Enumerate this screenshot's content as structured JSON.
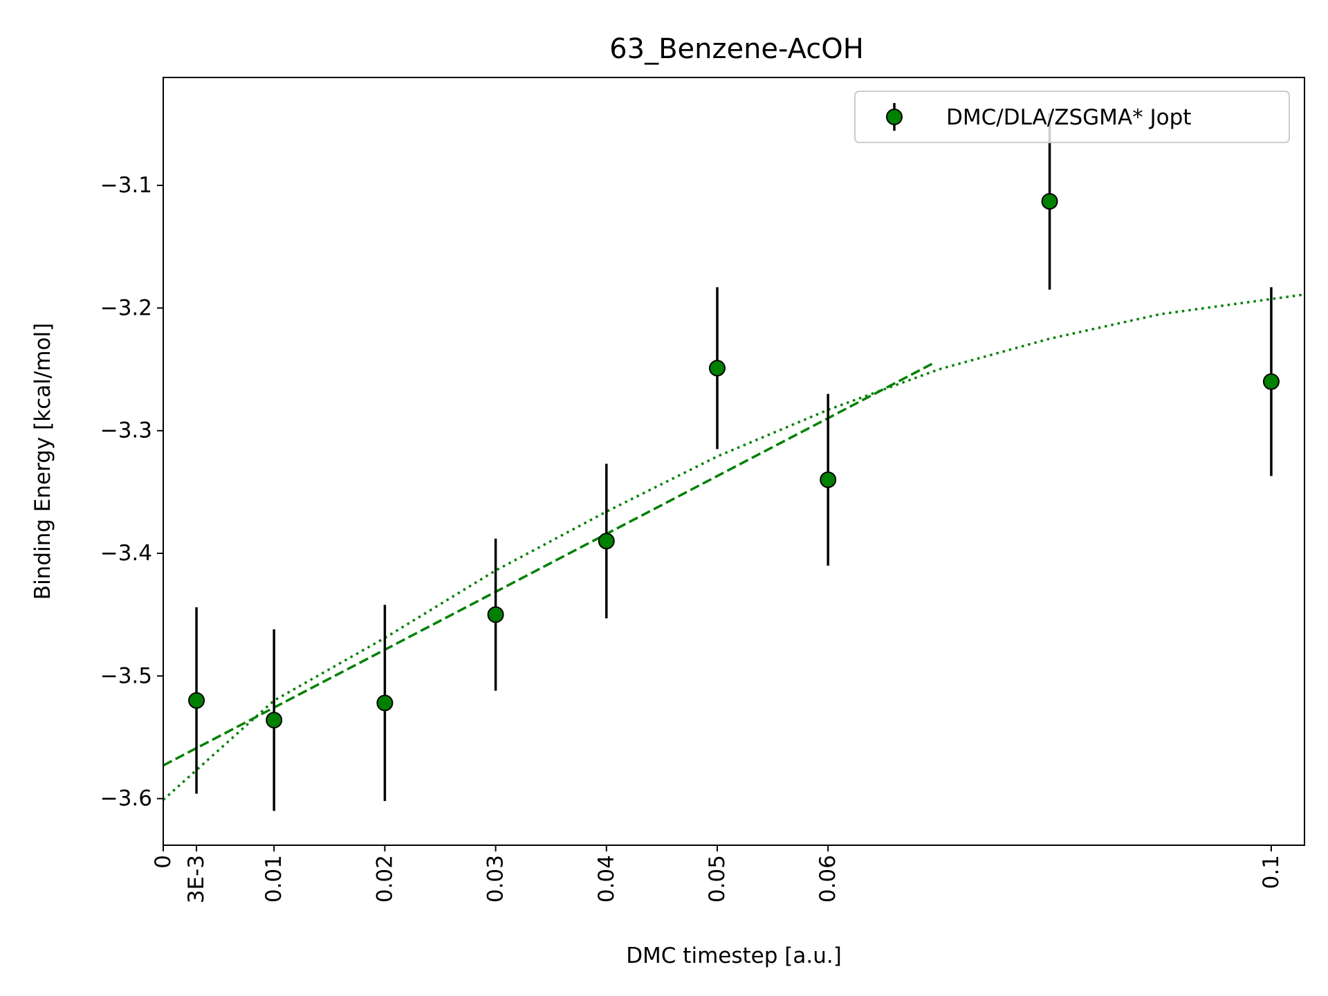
{
  "chart_data": {
    "type": "scatter",
    "title": "63_Benzene-AcOH",
    "xlabel": "DMC timestep [a.u.]",
    "ylabel": "Binding Energy [kcal/mol]",
    "xlim": [
      0,
      0.103
    ],
    "ylim": [
      -3.638,
      -3.012
    ],
    "x_ticks": [
      {
        "value": 0,
        "label": "0"
      },
      {
        "value": 0.003,
        "label": "3E-3"
      },
      {
        "value": 0.01,
        "label": "0.01"
      },
      {
        "value": 0.02,
        "label": "0.02"
      },
      {
        "value": 0.03,
        "label": "0.03"
      },
      {
        "value": 0.04,
        "label": "0.04"
      },
      {
        "value": 0.05,
        "label": "0.05"
      },
      {
        "value": 0.06,
        "label": "0.06"
      },
      {
        "value": 0.1,
        "label": "0.1"
      }
    ],
    "y_ticks": [
      {
        "value": -3.6,
        "label": "−3.6"
      },
      {
        "value": -3.5,
        "label": "−3.5"
      },
      {
        "value": -3.4,
        "label": "−3.4"
      },
      {
        "value": -3.3,
        "label": "−3.3"
      },
      {
        "value": -3.2,
        "label": "−3.2"
      },
      {
        "value": -3.1,
        "label": "−3.1"
      }
    ],
    "series": [
      {
        "name": "DMC/DLA/ZSGMA* Jopt",
        "color": "#008000",
        "points": [
          {
            "x": 0.003,
            "y": -3.52,
            "err": 0.076
          },
          {
            "x": 0.01,
            "y": -3.536,
            "err": 0.074
          },
          {
            "x": 0.02,
            "y": -3.522,
            "err": 0.08
          },
          {
            "x": 0.03,
            "y": -3.45,
            "err": 0.062
          },
          {
            "x": 0.04,
            "y": -3.39,
            "err": 0.063
          },
          {
            "x": 0.05,
            "y": -3.249,
            "err": 0.066
          },
          {
            "x": 0.06,
            "y": -3.34,
            "err": 0.07
          },
          {
            "x": 0.08,
            "y": -3.113,
            "err": 0.072
          },
          {
            "x": 0.1,
            "y": -3.26,
            "err": 0.077
          }
        ]
      }
    ],
    "fits": [
      {
        "style": "dashed",
        "color": "#008000",
        "x": [
          0,
          0.0695
        ],
        "y": [
          -3.573,
          -3.245
        ]
      },
      {
        "style": "dotted",
        "color": "#008000",
        "x": [
          0,
          0.01,
          0.02,
          0.03,
          0.04,
          0.05,
          0.06,
          0.07,
          0.08,
          0.09,
          0.103
        ],
        "y": [
          -3.601,
          -3.52,
          -3.469,
          -3.414,
          -3.366,
          -3.321,
          -3.283,
          -3.25,
          -3.225,
          -3.205,
          -3.189
        ]
      }
    ],
    "legend": {
      "position": "top-right",
      "label": "DMC/DLA/ZSGMA* Jopt"
    },
    "grid": false
  }
}
